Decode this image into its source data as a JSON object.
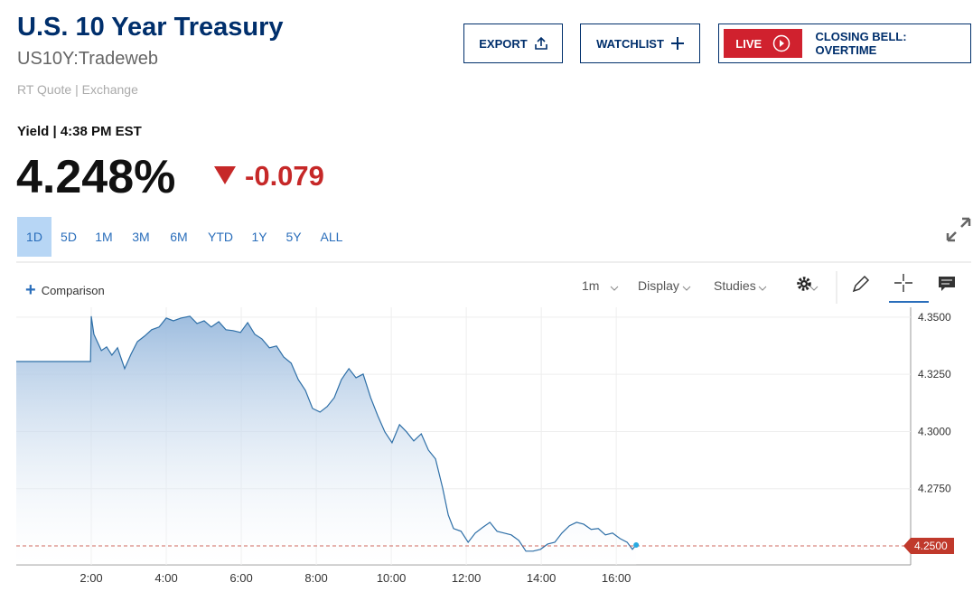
{
  "header": {
    "title": "U.S. 10 Year Treasury",
    "symbol": "US10Y:Tradeweb",
    "source": "RT Quote | Exchange",
    "buttons": {
      "export": "EXPORT",
      "watchlist": "WATCHLIST",
      "live": "LIVE",
      "live_show": "CLOSING BELL: OVERTIME"
    }
  },
  "quote": {
    "label": "Yield | 4:38 PM EST",
    "price": "4.248%",
    "change": "-0.079"
  },
  "ranges": {
    "items": [
      "1D",
      "5D",
      "1M",
      "3M",
      "6M",
      "YTD",
      "1Y",
      "5Y",
      "ALL"
    ],
    "active": "1D"
  },
  "toolbar": {
    "comparison": "Comparison",
    "interval": "1m",
    "display": "Display",
    "studies": "Studies"
  },
  "chart_data": {
    "type": "area",
    "color": "#2e6fa7",
    "grid": true,
    "xlim": [
      0,
      23.85
    ],
    "ylim": [
      4.2417,
      4.3543
    ],
    "xticks": [
      {
        "value": 2,
        "label": "2:00"
      },
      {
        "value": 4,
        "label": "4:00"
      },
      {
        "value": 6,
        "label": "6:00"
      },
      {
        "value": 8,
        "label": "8:00"
      },
      {
        "value": 10,
        "label": "10:00"
      },
      {
        "value": 12,
        "label": "12:00"
      },
      {
        "value": 14,
        "label": "14:00"
      },
      {
        "value": 16,
        "label": "16:00"
      }
    ],
    "yticks": [
      {
        "value": 4.275,
        "label": "4.2750"
      },
      {
        "value": 4.3,
        "label": "4.3000"
      },
      {
        "value": 4.325,
        "label": "4.3250"
      },
      {
        "value": 4.35,
        "label": "4.3500"
      }
    ],
    "reference_line": {
      "value": 4.25,
      "label": "4.2500",
      "color": "#c0392b"
    },
    "x": [
      0,
      1.98,
      2.0,
      2.07,
      2.27,
      2.41,
      2.55,
      2.7,
      2.89,
      3.06,
      3.23,
      3.42,
      3.61,
      3.81,
      4.0,
      4.19,
      4.39,
      4.63,
      4.82,
      5.01,
      5.2,
      5.4,
      5.59,
      5.78,
      5.98,
      6.17,
      6.36,
      6.55,
      6.75,
      6.94,
      7.13,
      7.33,
      7.52,
      7.71,
      7.9,
      8.1,
      8.29,
      8.48,
      8.67,
      8.87,
      9.06,
      9.25,
      9.45,
      9.64,
      9.83,
      10.02,
      10.22,
      10.41,
      10.6,
      10.8,
      10.99,
      11.18,
      11.37,
      11.52,
      11.66,
      11.86,
      12.05,
      12.24,
      12.43,
      12.63,
      12.82,
      13.01,
      13.2,
      13.4,
      13.59,
      13.78,
      13.98,
      14.17,
      14.36,
      14.55,
      14.75,
      14.94,
      15.13,
      15.33,
      15.52,
      15.71,
      15.9,
      16.1,
      16.29,
      16.43,
      16.53
    ],
    "values": [
      4.3306,
      4.3306,
      4.3504,
      4.3425,
      4.3354,
      4.337,
      4.3334,
      4.3366,
      4.3275,
      4.3338,
      4.3393,
      4.3417,
      4.3445,
      4.3457,
      4.3496,
      4.3484,
      4.3496,
      4.3504,
      4.3472,
      4.3484,
      4.3457,
      4.348,
      4.3445,
      4.3441,
      4.3433,
      4.3476,
      4.3425,
      4.3405,
      4.3366,
      4.3374,
      4.3326,
      4.3299,
      4.3227,
      4.318,
      4.3101,
      4.3085,
      4.3109,
      4.3148,
      4.3227,
      4.3275,
      4.3235,
      4.3251,
      4.3148,
      4.3069,
      4.2998,
      4.2951,
      4.303,
      4.2998,
      4.2959,
      4.299,
      4.2919,
      4.288,
      4.2753,
      4.2635,
      4.2576,
      4.2564,
      4.2516,
      4.2556,
      4.258,
      4.2603,
      4.2564,
      4.2556,
      4.2548,
      4.2524,
      4.2477,
      4.2477,
      4.2485,
      4.2508,
      4.2516,
      4.2556,
      4.2588,
      4.2603,
      4.2595,
      4.2572,
      4.2576,
      4.2548,
      4.2556,
      4.2532,
      4.2516,
      4.2485,
      4.2504
    ]
  }
}
